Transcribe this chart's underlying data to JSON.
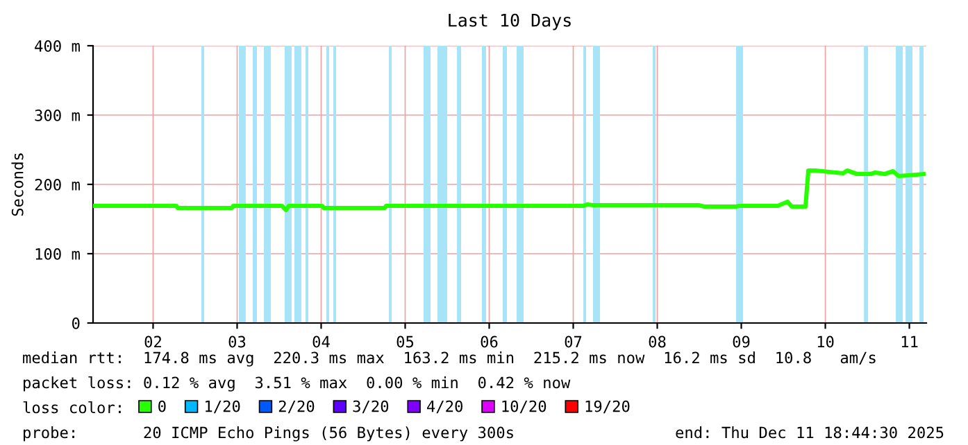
{
  "chart_data": {
    "type": "line",
    "title": "Last 10 Days",
    "ylabel": "Seconds",
    "xlim": [
      "2025-12-01T18:51",
      "2025-12-11T16:51"
    ],
    "xticks": [
      {
        "value": "2025-12-02T12:00",
        "label": "02"
      },
      {
        "value": "2025-12-03T12:00",
        "label": "03"
      },
      {
        "value": "2025-12-04T12:00",
        "label": "04"
      },
      {
        "value": "2025-12-05T12:00",
        "label": "05"
      },
      {
        "value": "2025-12-06T12:00",
        "label": "06"
      },
      {
        "value": "2025-12-07T12:00",
        "label": "07"
      },
      {
        "value": "2025-12-08T12:00",
        "label": "08"
      },
      {
        "value": "2025-12-09T12:00",
        "label": "09"
      },
      {
        "value": "2025-12-10T12:00",
        "label": "10"
      },
      {
        "value": "2025-12-11T12:00",
        "label": "11"
      }
    ],
    "ylim": [
      0,
      400
    ],
    "yticks": [
      0,
      {
        "value": 100,
        "label": "100 m"
      },
      {
        "value": 200,
        "label": "200 m"
      },
      {
        "value": 300,
        "label": "300 m"
      },
      {
        "value": 400,
        "label": "400 m"
      }
    ],
    "grid": true,
    "legend": "bottom",
    "marker": "none",
    "line_style": "solid",
    "x": [
      "2025-12-01T18:51",
      "2025-12-02T18:39",
      "2025-12-02T19:02",
      "2025-12-03T10:31",
      "2025-12-03T10:55",
      "2025-12-04T00:47",
      "2025-12-04T01:59",
      "2025-12-04T02:47",
      "2025-12-04T12:17",
      "2025-12-04T12:41",
      "2025-12-05T06:09",
      "2025-12-05T06:33",
      "2025-12-07T14:53",
      "2025-12-07T16:04",
      "2025-12-07T17:39",
      "2025-12-08T23:48",
      "2025-12-09T01:23",
      "2025-12-09T10:31",
      "2025-12-09T11:18",
      "2025-12-09T22:25",
      "2025-12-10T01:12",
      "2025-12-10T02:23",
      "2025-12-10T06:20",
      "2025-12-10T07:09",
      "2025-12-10T09:07",
      "2025-12-10T13:05",
      "2025-12-10T17:04",
      "2025-12-10T18:14",
      "2025-12-10T21:01",
      "2025-12-11T00:59",
      "2025-12-11T02:11",
      "2025-12-11T04:58",
      "2025-12-11T07:21",
      "2025-12-11T08:56",
      "2025-12-11T14:05",
      "2025-12-11T16:03"
    ],
    "series": [
      {
        "name": "0",
        "color": "#26ff00",
        "values": [
          169,
          169,
          166,
          166,
          169,
          169,
          163,
          169,
          169,
          166,
          166,
          169,
          169,
          171,
          170,
          170,
          168,
          168,
          169,
          169,
          175,
          168,
          168,
          220,
          220,
          218,
          216,
          220,
          215,
          215,
          217,
          215,
          219,
          212,
          214,
          215
        ]
      },
      {
        "name": "1/20",
        "color": "#00b8ff",
        "values": [
          null,
          null,
          null,
          null,
          null,
          null,
          null,
          null,
          null,
          null,
          null,
          null,
          null,
          null,
          null,
          null,
          null,
          null,
          null,
          null,
          null,
          null,
          null,
          null,
          null,
          null,
          null,
          null,
          null,
          null,
          null,
          null,
          null,
          null,
          null,
          null
        ]
      },
      {
        "name": "2/20",
        "color": "#0059ff",
        "values": [
          null,
          null,
          null,
          null,
          null,
          null,
          null,
          null,
          null,
          null,
          null,
          null,
          null,
          null,
          null,
          null,
          null,
          null,
          null,
          null,
          null,
          null,
          null,
          null,
          null,
          null,
          null,
          null,
          null,
          null,
          null,
          null,
          null,
          null,
          null,
          null
        ]
      },
      {
        "name": "3/20",
        "color": "#5e00ff",
        "values": [
          null,
          null,
          null,
          null,
          null,
          null,
          null,
          null,
          null,
          null,
          null,
          null,
          null,
          null,
          null,
          null,
          null,
          null,
          null,
          null,
          null,
          null,
          null,
          null,
          null,
          null,
          null,
          null,
          null,
          null,
          null,
          null,
          null,
          null,
          null,
          null
        ]
      },
      {
        "name": "4/20",
        "color": "#7e00ff",
        "values": [
          null,
          null,
          null,
          null,
          null,
          null,
          null,
          null,
          null,
          null,
          null,
          null,
          null,
          null,
          null,
          null,
          null,
          null,
          null,
          null,
          null,
          null,
          null,
          null,
          null,
          null,
          null,
          null,
          null,
          null,
          null,
          null,
          null,
          null,
          null,
          null
        ]
      },
      {
        "name": "10/20",
        "color": "#dd00ff",
        "values": [
          null,
          null,
          null,
          null,
          null,
          null,
          null,
          null,
          null,
          null,
          null,
          null,
          null,
          null,
          null,
          null,
          null,
          null,
          null,
          null,
          null,
          null,
          null,
          null,
          null,
          null,
          null,
          null,
          null,
          null,
          null,
          null,
          null,
          null,
          null,
          null
        ]
      },
      {
        "name": "19/20",
        "color": "#ff0000",
        "values": [
          null,
          null,
          null,
          null,
          null,
          null,
          null,
          null,
          null,
          null,
          null,
          null,
          null,
          null,
          null,
          null,
          null,
          null,
          null,
          null,
          null,
          null,
          null,
          null,
          null,
          null,
          null,
          null,
          null,
          null,
          null,
          null,
          null,
          null,
          null,
          null
        ]
      }
    ],
    "bands": [
      {
        "axis": "x",
        "from": "2025-12-03T01:47",
        "to": "2025-12-03T02:35",
        "color": "#a8e4f8"
      },
      {
        "axis": "x",
        "from": "2025-12-03T12:30",
        "to": "2025-12-03T14:28",
        "color": "#a8e4f8"
      },
      {
        "axis": "x",
        "from": "2025-12-03T16:27",
        "to": "2025-12-03T17:39",
        "color": "#a8e4f8"
      },
      {
        "axis": "x",
        "from": "2025-12-03T19:38",
        "to": "2025-12-03T21:37",
        "color": "#a8e4f8"
      },
      {
        "axis": "x",
        "from": "2025-12-04T01:35",
        "to": "2025-12-04T03:34",
        "color": "#a8e4f8"
      },
      {
        "axis": "x",
        "from": "2025-12-04T04:22",
        "to": "2025-12-04T06:20",
        "color": "#a8e4f8"
      },
      {
        "axis": "x",
        "from": "2025-12-04T07:32",
        "to": "2025-12-04T08:20",
        "color": "#a8e4f8"
      },
      {
        "axis": "x",
        "from": "2025-12-04T13:29",
        "to": "2025-12-04T14:17",
        "color": "#a8e4f8"
      },
      {
        "axis": "x",
        "from": "2025-12-04T15:28",
        "to": "2025-12-04T16:16",
        "color": "#a8e4f8"
      },
      {
        "axis": "x",
        "from": "2025-12-05T07:21",
        "to": "2025-12-05T08:08",
        "color": "#a8e4f8"
      },
      {
        "axis": "x",
        "from": "2025-12-05T17:15",
        "to": "2025-12-05T19:14",
        "color": "#a8e4f8"
      },
      {
        "axis": "x",
        "from": "2025-12-05T21:13",
        "to": "2025-12-06T00:00",
        "color": "#a8e4f8"
      },
      {
        "axis": "x",
        "from": "2025-12-06T02:47",
        "to": "2025-12-06T03:58",
        "color": "#a8e4f8"
      },
      {
        "axis": "x",
        "from": "2025-12-06T09:55",
        "to": "2025-12-06T11:06",
        "color": "#a8e4f8"
      },
      {
        "axis": "x",
        "from": "2025-12-06T15:52",
        "to": "2025-12-06T17:04",
        "color": "#a8e4f8"
      },
      {
        "axis": "x",
        "from": "2025-12-06T19:50",
        "to": "2025-12-06T21:49",
        "color": "#a8e4f8"
      },
      {
        "axis": "x",
        "from": "2025-12-07T14:53",
        "to": "2025-12-07T15:40",
        "color": "#a8e4f8"
      },
      {
        "axis": "x",
        "from": "2025-12-07T17:39",
        "to": "2025-12-07T19:38",
        "color": "#a8e4f8"
      },
      {
        "axis": "x",
        "from": "2025-12-08T10:43",
        "to": "2025-12-08T11:30",
        "color": "#a8e4f8"
      },
      {
        "axis": "x",
        "from": "2025-12-09T10:31",
        "to": "2025-12-09T12:30",
        "color": "#a8e4f8"
      },
      {
        "axis": "x",
        "from": "2025-12-10T23:01",
        "to": "2025-12-11T00:12",
        "color": "#a8e4f8"
      },
      {
        "axis": "x",
        "from": "2025-12-11T08:08",
        "to": "2025-12-11T10:07",
        "color": "#a8e4f8"
      },
      {
        "axis": "x",
        "from": "2025-12-11T10:55",
        "to": "2025-12-11T12:53",
        "color": "#a8e4f8"
      },
      {
        "axis": "x",
        "from": "2025-12-11T14:53",
        "to": "2025-12-11T16:03",
        "color": "#a8e4f8"
      }
    ],
    "annotations": [
      "median rtt:  174.8 ms avg  220.3 ms max  163.2 ms min  215.2 ms now  16.2 ms sd  10.8   am/s",
      "packet loss: 0.12 % avg  3.51 % max  0.00 % min  0.42 % now",
      "loss color:",
      "probe:       20 ICMP Echo Pings (56 Bytes) every 300s",
      "end: Thu Dec 11 18:44:30 2025"
    ]
  }
}
